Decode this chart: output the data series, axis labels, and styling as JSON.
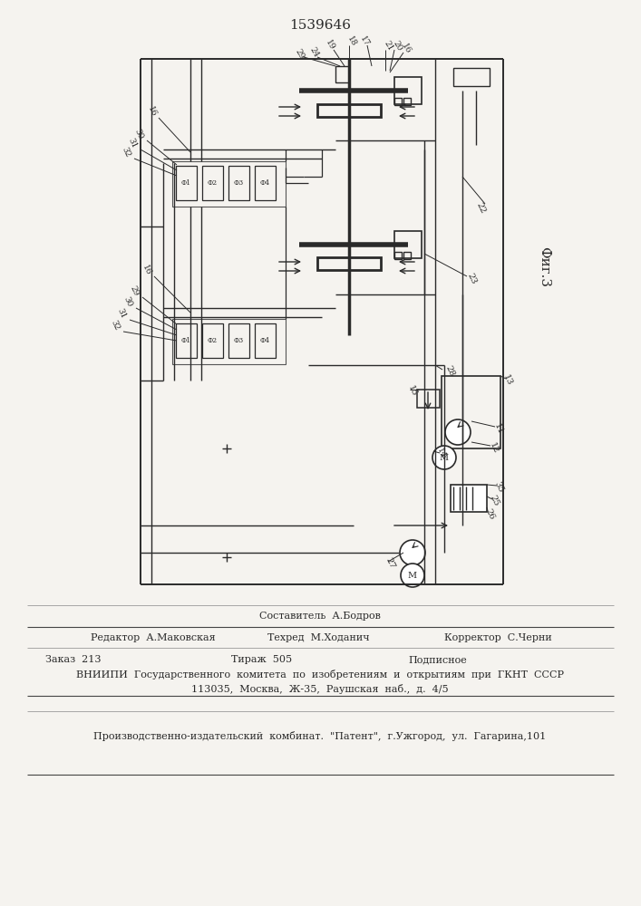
{
  "title": "1539646",
  "fig_label": "Фиг.3",
  "bg_color": "#f5f3ef",
  "line_color": "#2a2a2a",
  "footer_editor": "Редактор  А.Маковская",
  "footer_composer": "Составитель  А.Бодров",
  "footer_tech": "Техред  М.Ходанич",
  "footer_corrector": "Корректор  С.Черни",
  "footer_order": "Заказ  213",
  "footer_tirazh": "Тираж  505",
  "footer_podpisnoe": "Подписное",
  "footer_vniip1": "ВНИИПИ  Государственного  комитета  по  изобретениям  и  открытиям  при  ГКНТ  СССР",
  "footer_vniip2": "113035,  Москва,  Ж-35,  Раушская  наб.,  д.  4/5",
  "footer_pub": "Производственно-издательский  комбинат.  \"Патент\",  г.Ужгород,  ул.  Гагарина,101"
}
